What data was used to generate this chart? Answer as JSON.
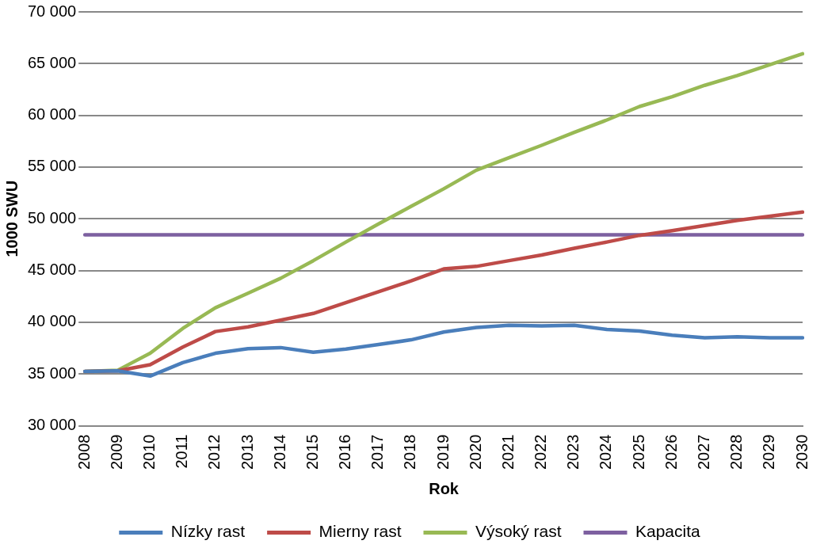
{
  "chart_data": {
    "type": "line",
    "xlabel": "Rok",
    "ylabel": "1000 SWU",
    "categories": [
      "2008",
      "2009",
      "2010",
      "2011",
      "2012",
      "2013",
      "2014",
      "2015",
      "2016",
      "2017",
      "2018",
      "2019",
      "2020",
      "2021",
      "2022",
      "2023",
      "2024",
      "2025",
      "2026",
      "2027",
      "2028",
      "2029",
      "2030"
    ],
    "series": [
      {
        "name": "Nízky rast",
        "color": "#4a7ebb",
        "values": [
          35250,
          35300,
          34800,
          36100,
          37000,
          37450,
          37550,
          37100,
          37400,
          37850,
          38300,
          39050,
          39500,
          39700,
          39650,
          39700,
          39300,
          39150,
          38750,
          38500,
          38600,
          38500,
          38500
        ]
      },
      {
        "name": "Mierny rast",
        "color": "#be4b48",
        "values": [
          35250,
          35300,
          35900,
          37600,
          39100,
          39550,
          40200,
          40850,
          41900,
          42950,
          44000,
          45150,
          45400,
          45950,
          46500,
          47150,
          47750,
          48400,
          48850,
          49350,
          49850,
          50250,
          50650
        ]
      },
      {
        "name": "Výsoký rast",
        "color": "#98b954",
        "values": [
          35250,
          35350,
          37000,
          39400,
          41400,
          42800,
          44250,
          45950,
          47750,
          49500,
          51200,
          52900,
          54700,
          55900,
          57100,
          58350,
          59550,
          60850,
          61800,
          62900,
          63850,
          64900,
          65950
        ]
      },
      {
        "name": "Kapacita",
        "color": "#7d60a0",
        "values": [
          48450,
          48450,
          48450,
          48450,
          48450,
          48450,
          48450,
          48450,
          48450,
          48450,
          48450,
          48450,
          48450,
          48450,
          48450,
          48450,
          48450,
          48450,
          48450,
          48450,
          48450,
          48450,
          48450
        ]
      }
    ],
    "ylim": [
      30000,
      70000
    ],
    "yticks": [
      {
        "value": 30000,
        "label": "30 000"
      },
      {
        "value": 35000,
        "label": "35 000"
      },
      {
        "value": 40000,
        "label": "40 000"
      },
      {
        "value": 45000,
        "label": "45 000"
      },
      {
        "value": 50000,
        "label": "50 000"
      },
      {
        "value": 55000,
        "label": "55 000"
      },
      {
        "value": 60000,
        "label": "60 000"
      },
      {
        "value": 65000,
        "label": "65 000"
      },
      {
        "value": 70000,
        "label": "70 000"
      }
    ],
    "grid": "y",
    "legend": "bottom",
    "marker": "none",
    "line_style": "solid"
  }
}
